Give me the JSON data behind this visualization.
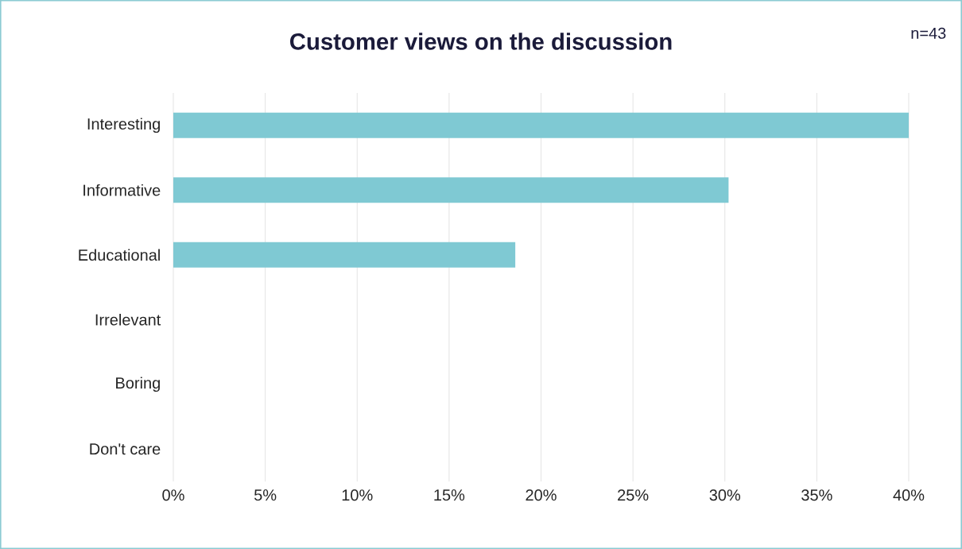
{
  "chart_data": {
    "type": "bar",
    "orientation": "horizontal",
    "title": "Customer views on the discussion",
    "annotations": [
      "n=43"
    ],
    "categories": [
      "Interesting",
      "Informative",
      "Educational",
      "Irrelevant",
      "Boring",
      "Don't care"
    ],
    "values": [
      40,
      30.2,
      18.6,
      0,
      0,
      0
    ],
    "color": "#7fc9d3",
    "xlim": [
      0,
      40
    ],
    "xticks": [
      {
        "value": 0,
        "label": "0%"
      },
      {
        "value": 5,
        "label": "5%"
      },
      {
        "value": 10,
        "label": "10%"
      },
      {
        "value": 15,
        "label": "15%"
      },
      {
        "value": 20,
        "label": "20%"
      },
      {
        "value": 25,
        "label": "25%"
      },
      {
        "value": 30,
        "label": "30%"
      },
      {
        "value": 35,
        "label": "35%"
      },
      {
        "value": 40,
        "label": "40%"
      }
    ],
    "grid": "x"
  }
}
